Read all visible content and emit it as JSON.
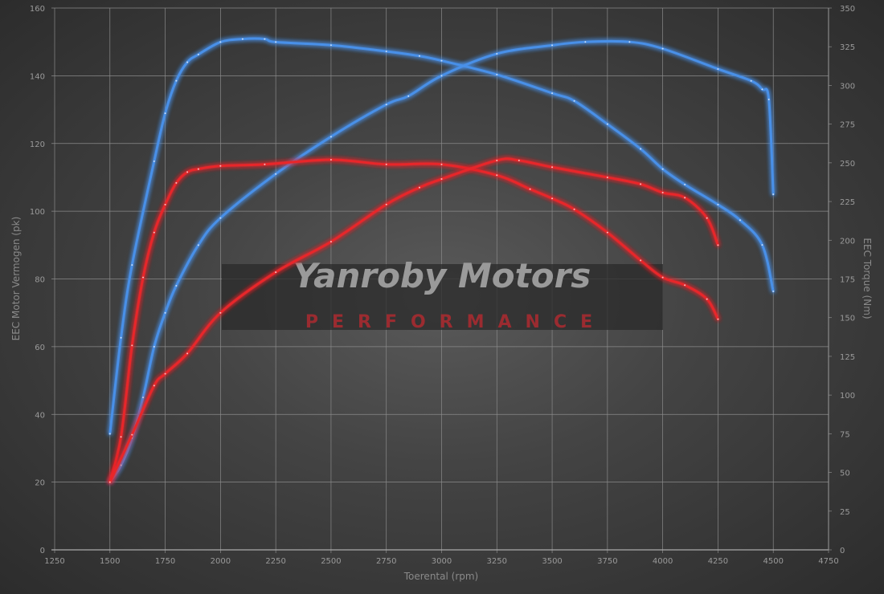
{
  "chart_data": {
    "type": "line",
    "xlabel": "Toerental (rpm)",
    "ylabel": "EEC Motor Vermogen (pk)",
    "y2label": "EEC Torque (Nm)",
    "xlim": [
      1250,
      4750
    ],
    "ylim": [
      0,
      160
    ],
    "y2lim": [
      0,
      350
    ],
    "xticks": [
      1250,
      1500,
      1750,
      2000,
      2250,
      2500,
      2750,
      3000,
      3250,
      3500,
      3750,
      4000,
      4250,
      4500,
      4750
    ],
    "yticks": [
      0,
      20,
      40,
      60,
      80,
      100,
      120,
      140,
      160
    ],
    "y2ticks": [
      0,
      25,
      50,
      75,
      100,
      125,
      150,
      175,
      200,
      225,
      250,
      275,
      300,
      325,
      350
    ],
    "grid": true,
    "watermark": {
      "title": "Yanroby Motors",
      "subtitle": "PERFORMANCE"
    },
    "series": [
      {
        "axis": "right",
        "color": "#4a90e8",
        "x": [
          1500,
          1550,
          1600,
          1700,
          1750,
          1800,
          1850,
          1900,
          2000,
          2100,
          2200,
          2250,
          2500,
          2750,
          2900,
          3000,
          3250,
          3500,
          3600,
          3750,
          3900,
          4000,
          4100,
          4250,
          4350,
          4450,
          4500
        ],
        "y": [
          75,
          137,
          184,
          251,
          282,
          303,
          315,
          320,
          328,
          330,
          330,
          328,
          326,
          322,
          319,
          316,
          307,
          295,
          290,
          275,
          259,
          246,
          236,
          223,
          213,
          197,
          167
        ]
      },
      {
        "axis": "left",
        "color": "#4a90e8",
        "x": [
          1500,
          1550,
          1600,
          1650,
          1700,
          1750,
          1800,
          1900,
          2000,
          2250,
          2500,
          2750,
          2850,
          3000,
          3250,
          3500,
          3650,
          3850,
          4000,
          4250,
          4400,
          4450,
          4480,
          4500
        ],
        "y": [
          20,
          25,
          33,
          45,
          60,
          70,
          78,
          90,
          98,
          111,
          122,
          131.5,
          134,
          140,
          146.5,
          149,
          150,
          150,
          148,
          142,
          138.5,
          136,
          133,
          105
        ]
      },
      {
        "axis": "right",
        "color": "#e8262a",
        "x": [
          1500,
          1550,
          1600,
          1650,
          1700,
          1750,
          1800,
          1850,
          1900,
          2000,
          2200,
          2500,
          2750,
          3000,
          3250,
          3400,
          3500,
          3600,
          3750,
          3900,
          4000,
          4100,
          4200,
          4250
        ],
        "y": [
          44,
          73,
          132,
          176,
          205,
          223,
          237,
          244,
          246,
          248,
          249,
          252,
          249,
          249,
          242,
          233,
          227,
          220,
          205,
          187,
          176,
          171,
          162,
          149
        ]
      },
      {
        "axis": "left",
        "color": "#e8262a",
        "x": [
          1500,
          1600,
          1700,
          1750,
          1850,
          2000,
          2250,
          2500,
          2750,
          2900,
          3000,
          3250,
          3350,
          3500,
          3750,
          3900,
          4000,
          4100,
          4200,
          4250
        ],
        "y": [
          20,
          34,
          48.5,
          52,
          58,
          70,
          82,
          91,
          102,
          107,
          109.5,
          115,
          115,
          113,
          110,
          108,
          105.5,
          104,
          98,
          90
        ]
      }
    ]
  }
}
